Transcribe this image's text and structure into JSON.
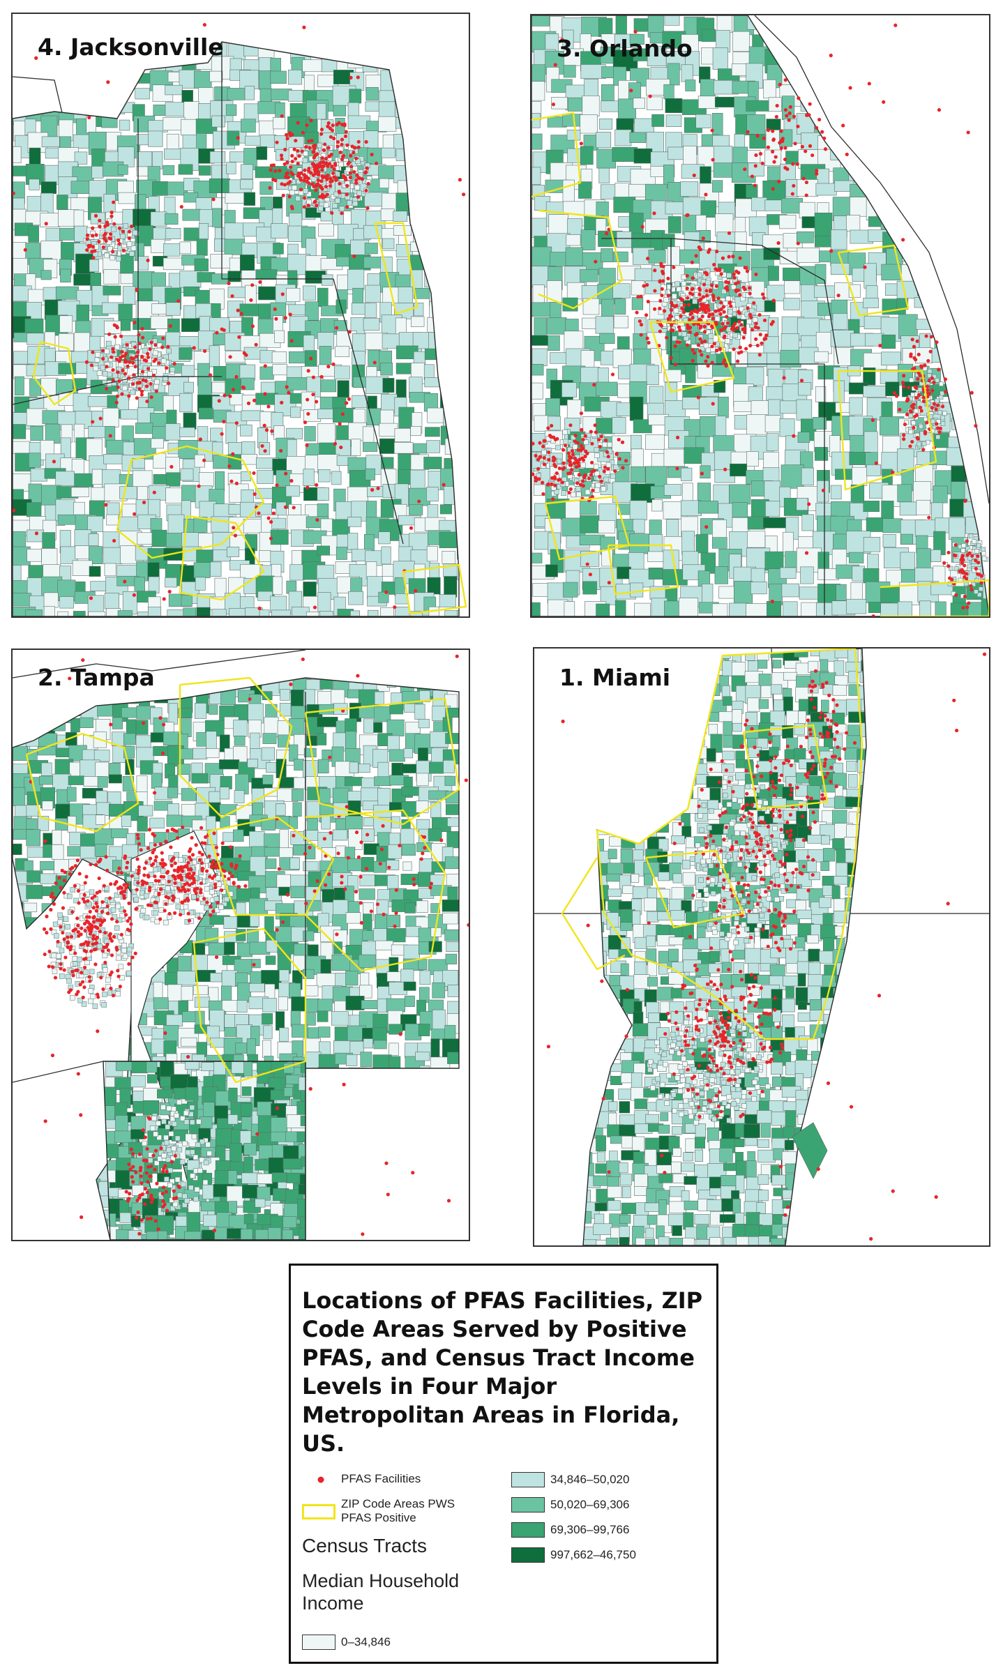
{
  "panels": [
    {
      "id": "jacksonville",
      "title": "4. Jacksonville"
    },
    {
      "id": "orlando",
      "title": "3. Orlando"
    },
    {
      "id": "tampa",
      "title": "2. Tampa"
    },
    {
      "id": "miami",
      "title": "1. Miami"
    }
  ],
  "legend": {
    "title": "Locations of PFAS Facilities, ZIP Code Areas Served by Positive PFAS, and Census Tract Income Levels in Four Major Metropolitan Areas in Florida, US.",
    "pfas_label": "PFAS Facilities",
    "zip_label": "ZIP Code Areas PWS PFAS Positive",
    "census_heading": "Census Tracts",
    "income_heading": "Median Household Income",
    "classes": [
      {
        "label": "0–34,846",
        "color": "#eef7f6"
      },
      {
        "label": "34,846–50,020",
        "color": "#bfe3e0"
      },
      {
        "label": "50,020–69,306",
        "color": "#6cc3a4"
      },
      {
        "label": "69,306–99,766",
        "color": "#3aa572"
      },
      {
        "label": "997,662–46,750",
        "color": "#0f6e3c"
      }
    ]
  },
  "colors": {
    "pfas": "#e8242a",
    "zip_outline": "#f1e51a",
    "tract_border": "#5c6f6a",
    "county_border": "#2b2b2b"
  }
}
